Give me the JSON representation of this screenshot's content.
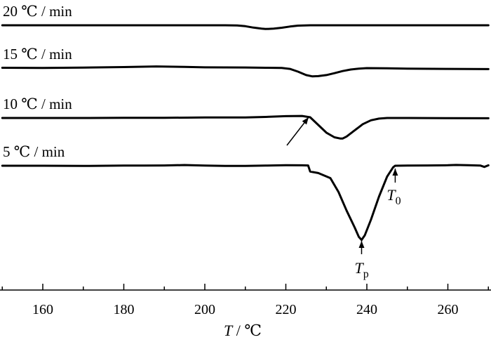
{
  "chart_data": {
    "type": "line",
    "title": "",
    "xlabel_var": "T",
    "xlabel_unit": " / ℃",
    "xlim": [
      150,
      270
    ],
    "xticks": [
      160,
      180,
      200,
      220,
      240,
      260
    ],
    "ylabel": "",
    "series": [
      {
        "name": "20 ℃ / min",
        "x": [
          150,
          170,
          190,
          200,
          205,
          208,
          210,
          212,
          214,
          215,
          217,
          219,
          221,
          223,
          226,
          230,
          240,
          250,
          260,
          270
        ],
        "y": [
          0,
          0,
          0,
          0,
          0,
          -0.3,
          -1.2,
          -3.0,
          -4.4,
          -4.8,
          -4.4,
          -3.2,
          -1.6,
          -0.5,
          0,
          0,
          0,
          0,
          0,
          0
        ]
      },
      {
        "name": "15 ℃ / min",
        "x": [
          150,
          160,
          170,
          180,
          188,
          195,
          200,
          205,
          210,
          215,
          219,
          221,
          223,
          225,
          226.5,
          228,
          230,
          232,
          234,
          236,
          238,
          240,
          245,
          250,
          260,
          270
        ],
        "y": [
          0.5,
          0.2,
          0.6,
          1.4,
          2.2,
          1.6,
          1.0,
          0.9,
          0.8,
          0.5,
          0.2,
          -1.0,
          -4.5,
          -9.0,
          -10.6,
          -10.4,
          -9.0,
          -6.5,
          -3.8,
          -1.8,
          -0.6,
          0,
          -0.3,
          -0.6,
          -1.0,
          -1.3
        ]
      },
      {
        "name": "10 ℃ / min",
        "x": [
          150,
          160,
          170,
          180,
          190,
          200,
          210,
          215,
          220,
          224,
          226,
          228,
          230,
          232,
          233.5,
          234,
          235,
          237,
          239,
          241,
          243,
          245,
          250,
          260,
          270
        ],
        "y": [
          0,
          0,
          0,
          0.2,
          0.3,
          0.6,
          0.7,
          1.4,
          2.4,
          2.6,
          0.9,
          -9.0,
          -19.0,
          -25.0,
          -26.6,
          -26.6,
          -24.0,
          -16.0,
          -8.0,
          -3.0,
          -0.8,
          0,
          0,
          -0.3,
          -0.4
        ]
      },
      {
        "name": "5 ℃ / min",
        "x": [
          150,
          160,
          170,
          180,
          185,
          190,
          195,
          200,
          205,
          210,
          215,
          220,
          224,
          225.5,
          226,
          228,
          231,
          233,
          235,
          237,
          238,
          238.7,
          239.5,
          241,
          243,
          245,
          246.5,
          247,
          250,
          255,
          260,
          262,
          265,
          268,
          269,
          270
        ],
        "y": [
          0,
          0,
          -0.3,
          0.2,
          0.2,
          0.4,
          0.9,
          0.2,
          -0.2,
          -0.3,
          0.2,
          0.6,
          0.5,
          0.4,
          -7.5,
          -9.5,
          -16.0,
          -34.0,
          -58.0,
          -80.0,
          -92.0,
          -96.0,
          -90.0,
          -70.0,
          -40.0,
          -14.0,
          -2.0,
          0,
          0.2,
          0.4,
          0.6,
          1.0,
          0.6,
          0.3,
          -1.5,
          0.5
        ]
      }
    ],
    "annotations": [
      {
        "var": "T",
        "sub": "p",
        "x": 238.7
      },
      {
        "var": "T",
        "sub": "0",
        "x": 247
      }
    ]
  }
}
